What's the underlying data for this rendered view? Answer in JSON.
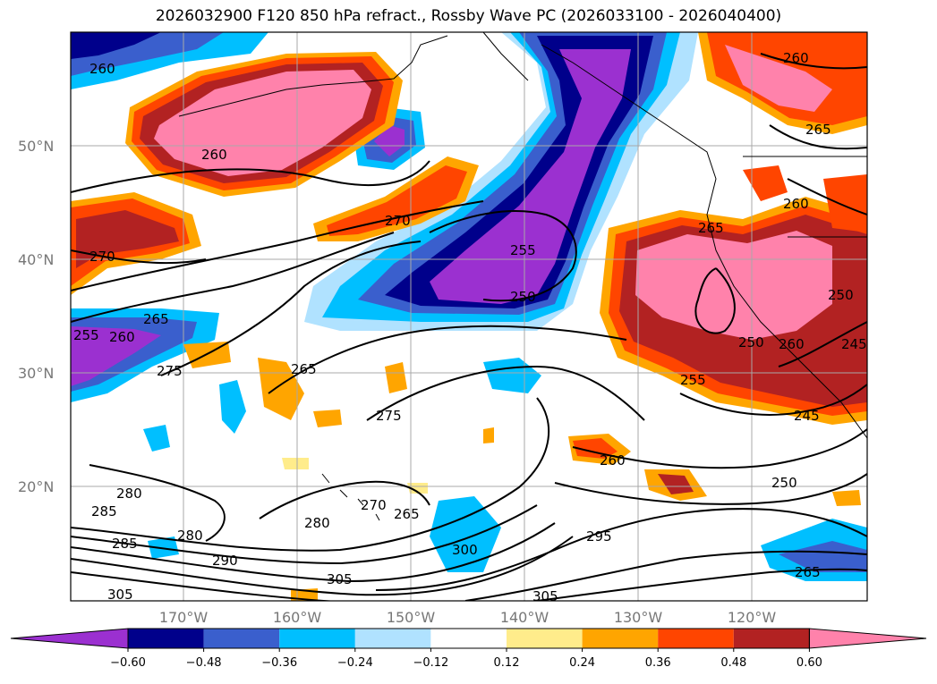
{
  "title": "2026032900 F120 850 hPa refract., Rossby Wave PC (2026033100 - 2026040400)",
  "lat_labels": [
    "50°N",
    "40°N",
    "30°N",
    "20°N"
  ],
  "lon_labels": [
    "170°W",
    "160°W",
    "150°W",
    "140°W",
    "130°W",
    "120°W"
  ],
  "colorbar": {
    "ticks": [
      "−0.60",
      "−0.48",
      "−0.36",
      "−0.24",
      "−0.12",
      "0.12",
      "0.24",
      "0.36",
      "0.48",
      "0.60"
    ],
    "colors": [
      "#9b30d0",
      "#00008b",
      "#3a5fcd",
      "#00bfff",
      "#b0e2ff",
      "#ffffff",
      "#ffec8b",
      "#ffa500",
      "#ff4500",
      "#b22222",
      "#ff82ab"
    ]
  },
  "contour_labels": [
    "260",
    "260",
    "260",
    "265",
    "260",
    "270",
    "270",
    "255",
    "250",
    "265",
    "260",
    "255",
    "265",
    "275",
    "275",
    "265",
    "250",
    "260",
    "255",
    "245",
    "245",
    "250",
    "260",
    "250",
    "285",
    "280",
    "285",
    "280",
    "290",
    "280",
    "270",
    "265",
    "300",
    "295",
    "305",
    "305",
    "305",
    "265"
  ]
}
